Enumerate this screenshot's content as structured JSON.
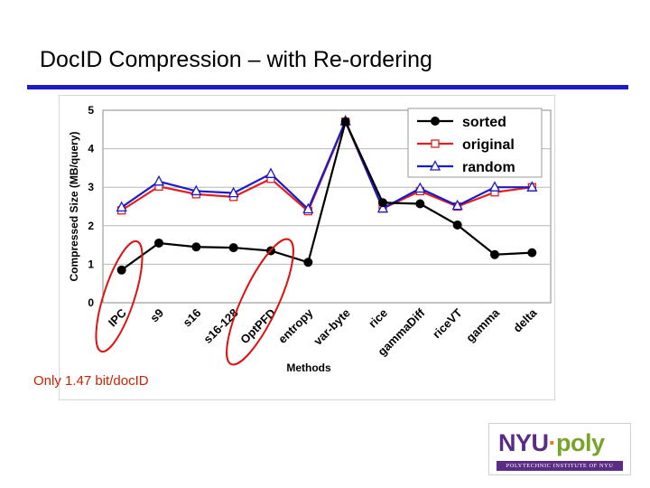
{
  "slide": {
    "title": "DocID Compression – with Re-ordering",
    "annotation": "Only 1.47 bit/docID",
    "accent_color": "#1c1cc8",
    "annotation_color": "#cc2200",
    "circled_categories": [
      "IPC",
      "OptPFD"
    ]
  },
  "logo": {
    "mark_nyu": "NYU",
    "mark_dot": "·",
    "mark_poly": "poly",
    "subtitle": "POLYTECHNIC INSTITUTE OF NYU"
  },
  "chart_data": {
    "type": "line",
    "xlabel": "Methods",
    "ylabel": "Compressed Size (MB/query)",
    "ylim": [
      0,
      5
    ],
    "yticks": [
      0,
      1,
      2,
      3,
      4,
      5
    ],
    "grid": true,
    "legend_position": "top-right",
    "categories": [
      "IPC",
      "s9",
      "s16",
      "s16-128",
      "OptPFD",
      "entropy",
      "var-byte",
      "rice",
      "gammaDiff",
      "riceVT",
      "gamma",
      "delta"
    ],
    "series": [
      {
        "name": "sorted",
        "color": "#000000",
        "marker": "circle",
        "values": [
          0.85,
          1.55,
          1.45,
          1.43,
          1.35,
          1.05,
          4.7,
          2.6,
          2.57,
          2.02,
          1.25,
          1.3
        ]
      },
      {
        "name": "original",
        "color": "#e02020",
        "marker": "square",
        "values": [
          2.4,
          3.02,
          2.82,
          2.75,
          3.22,
          2.38,
          4.7,
          2.45,
          2.9,
          2.5,
          2.87,
          3.0
        ]
      },
      {
        "name": "random",
        "color": "#1a1ac8",
        "marker": "triangle",
        "values": [
          2.48,
          3.15,
          2.9,
          2.85,
          3.35,
          2.43,
          4.72,
          2.45,
          2.97,
          2.52,
          3.0,
          3.0
        ]
      }
    ]
  }
}
